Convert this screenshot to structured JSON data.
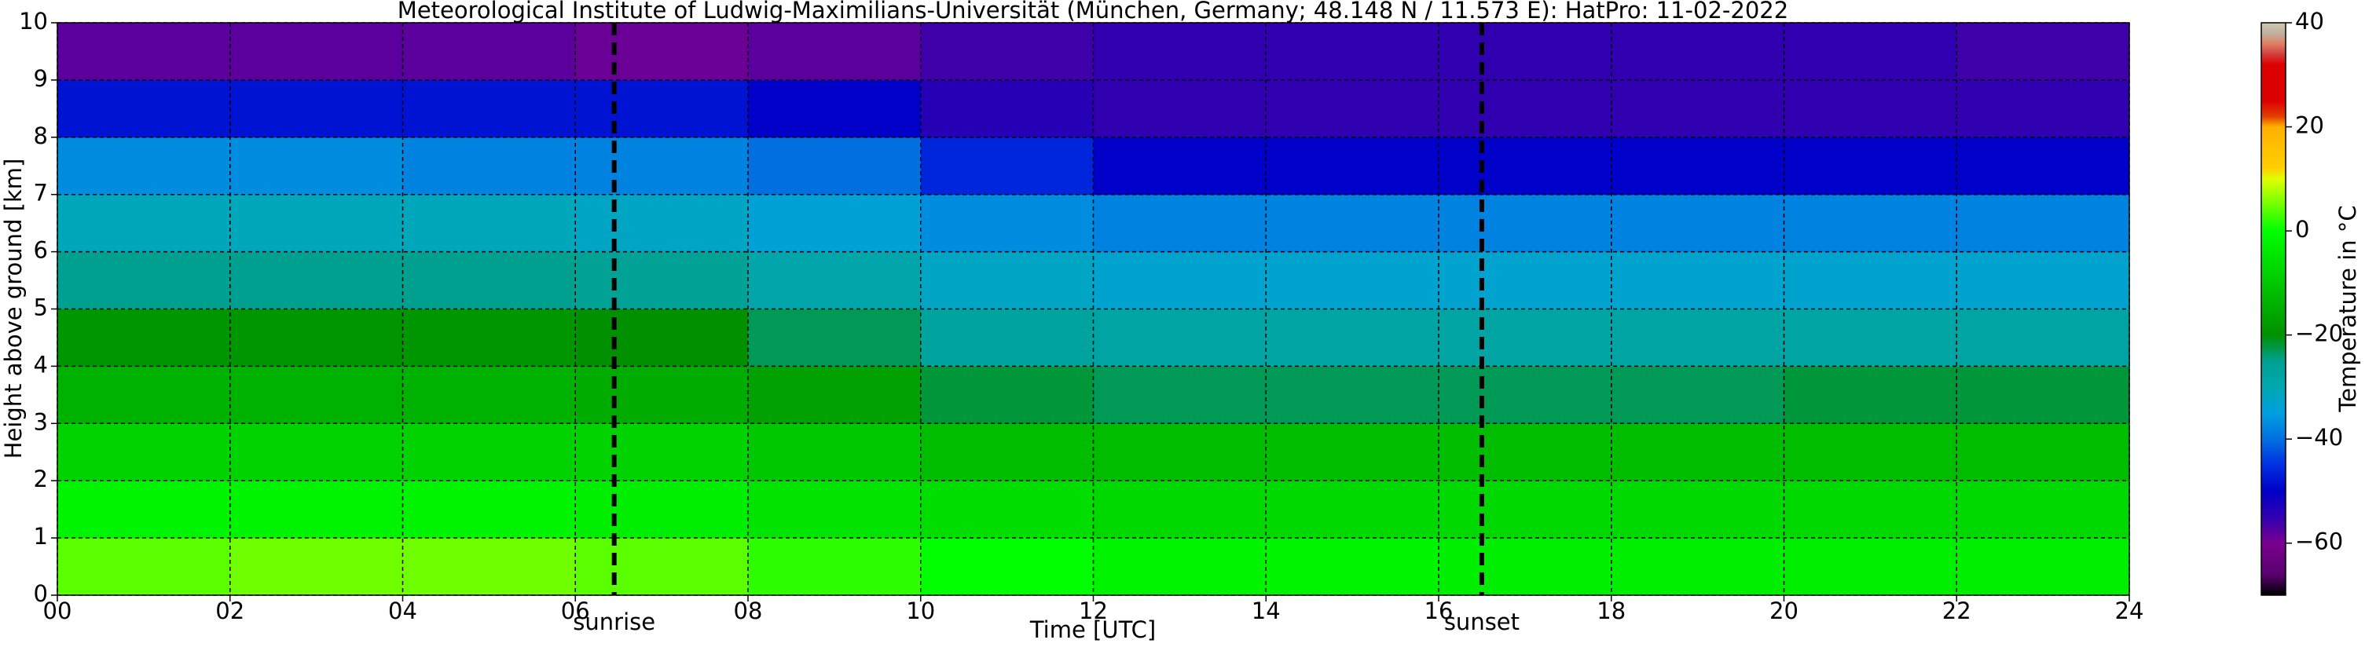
{
  "chart_data": {
    "type": "heatmap",
    "title": "Meteorological Institute of Ludwig-Maximilians-Universität (München, Germany; 48.148 N / 11.573 E):    HatPro: 11-02-2022",
    "x_label": "Time [UTC]",
    "y_label": "Height above ground [km]",
    "colorbar_label": "Temperature in °C",
    "xlim": [
      0,
      24
    ],
    "ylim": [
      0,
      10
    ],
    "clim": [
      -70,
      40
    ],
    "xticks": [
      {
        "value": 0,
        "label": "00"
      },
      {
        "value": 2,
        "label": "02"
      },
      {
        "value": 4,
        "label": "04"
      },
      {
        "value": 6,
        "label": "06"
      },
      {
        "value": 8,
        "label": "08"
      },
      {
        "value": 10,
        "label": "10"
      },
      {
        "value": 12,
        "label": "12"
      },
      {
        "value": 14,
        "label": "14"
      },
      {
        "value": 16,
        "label": "16"
      },
      {
        "value": 18,
        "label": "18"
      },
      {
        "value": 20,
        "label": "20"
      },
      {
        "value": 22,
        "label": "22"
      },
      {
        "value": 24,
        "label": "24"
      }
    ],
    "yticks": [
      0,
      1,
      2,
      3,
      4,
      5,
      6,
      7,
      8,
      9,
      10
    ],
    "cticks": [
      {
        "value": -60,
        "label": "−60"
      },
      {
        "value": -40,
        "label": "−40"
      },
      {
        "value": -20,
        "label": "−20"
      },
      0,
      20,
      40
    ],
    "grid": true,
    "x_bins": [
      0,
      2,
      4,
      6,
      8,
      10,
      12,
      14,
      16,
      18,
      20,
      22,
      24
    ],
    "y_bins": [
      0,
      1,
      2,
      3,
      4,
      5,
      6,
      7,
      8,
      9,
      10
    ],
    "z": [
      [
        4,
        5,
        5,
        4,
        2,
        0,
        -2,
        -2,
        -3,
        -3,
        -3,
        -3
      ],
      [
        -2,
        -2,
        -2,
        -3,
        -5,
        -6,
        -7,
        -7,
        -7,
        -7,
        -7,
        -7
      ],
      [
        -8,
        -8,
        -8,
        -8,
        -10,
        -12,
        -12,
        -12,
        -12,
        -12,
        -12,
        -12
      ],
      [
        -14,
        -14,
        -14,
        -15,
        -17,
        -22,
        -23,
        -23,
        -23,
        -23,
        -22,
        -22
      ],
      [
        -19,
        -19,
        -19,
        -20,
        -23,
        -27,
        -28,
        -28,
        -28,
        -28,
        -28,
        -28
      ],
      [
        -25,
        -25,
        -25,
        -26,
        -29,
        -32,
        -33,
        -33,
        -33,
        -33,
        -33,
        -33
      ],
      [
        -31,
        -31,
        -31,
        -32,
        -34,
        -37,
        -38,
        -38,
        -38,
        -38,
        -38,
        -38
      ],
      [
        -37,
        -37,
        -38,
        -38,
        -40,
        -46,
        -50,
        -50,
        -50,
        -50,
        -50,
        -50
      ],
      [
        -48,
        -48,
        -48,
        -48,
        -50,
        -54,
        -55,
        -55,
        -55,
        -55,
        -55,
        -55
      ],
      [
        -58,
        -58,
        -58,
        -59,
        -58,
        -56,
        -55,
        -55,
        -55,
        -55,
        -55,
        -56
      ]
    ],
    "colorscale": [
      [
        -70,
        "#000000"
      ],
      [
        -66,
        "#5a0070"
      ],
      [
        -60,
        "#7a0090"
      ],
      [
        -55,
        "#3000b0"
      ],
      [
        -50,
        "#0000c8"
      ],
      [
        -45,
        "#0030e0"
      ],
      [
        -40,
        "#0070e0"
      ],
      [
        -35,
        "#00a0e0"
      ],
      [
        -30,
        "#00a8b0"
      ],
      [
        -25,
        "#00a090"
      ],
      [
        -20,
        "#009000"
      ],
      [
        -10,
        "#00c800"
      ],
      [
        0,
        "#00ff00"
      ],
      [
        10,
        "#e0ff00"
      ],
      [
        12,
        "#ffd000"
      ],
      [
        20,
        "#ffb000"
      ],
      [
        22,
        "#e04000"
      ],
      [
        25,
        "#dd0000"
      ],
      [
        32,
        "#dd0000"
      ],
      [
        34,
        "#d04040"
      ],
      [
        36,
        "#e08060"
      ],
      [
        38,
        "#c0b0a0"
      ],
      [
        40,
        "#d0c8b0"
      ]
    ],
    "annotations": [
      {
        "text": "sunrise",
        "x": 6.45
      },
      {
        "text": "sunset",
        "x": 16.5
      }
    ]
  }
}
